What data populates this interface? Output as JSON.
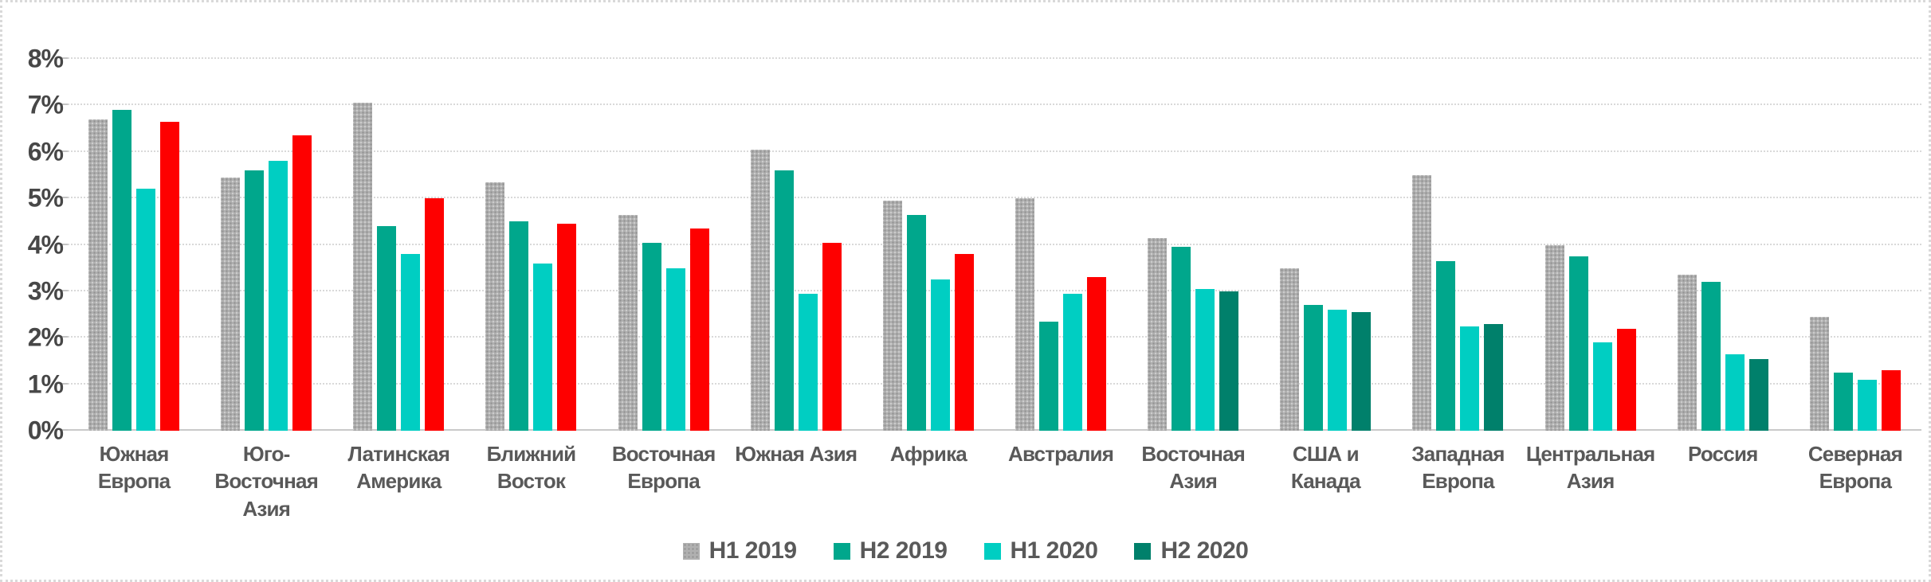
{
  "chart_data": {
    "type": "bar",
    "title": "",
    "xlabel": "",
    "ylabel": "",
    "ylim": [
      0,
      8
    ],
    "ytick_step": 1,
    "yticks": [
      "0%",
      "1%",
      "2%",
      "3%",
      "4%",
      "5%",
      "6%",
      "7%",
      "8%"
    ],
    "grid": true,
    "legend_position": "bottom",
    "categories": [
      "Южная Европа",
      "Юго-Восточная Азия",
      "Латинская Америка",
      "Ближний Восток",
      "Восточная Европа",
      "Южная Азия",
      "Африка",
      "Австралия",
      "Восточная Азия",
      "США и Канада",
      "Западная Европа",
      "Центральная Азия",
      "Россия",
      "Северная Европа"
    ],
    "series": [
      {
        "name": "H1 2019",
        "color": "#B0B0B0",
        "pattern": "dotted",
        "values": [
          6.7,
          5.45,
          7.05,
          5.35,
          4.65,
          6.05,
          4.95,
          5.0,
          4.15,
          3.5,
          5.5,
          4.0,
          3.35,
          2.45
        ]
      },
      {
        "name": "H2 2019",
        "color": "#00A78C",
        "values": [
          6.9,
          5.6,
          4.4,
          4.5,
          4.05,
          5.6,
          4.65,
          2.35,
          3.95,
          2.7,
          3.65,
          3.75,
          3.2,
          1.25
        ]
      },
      {
        "name": "H1 2020",
        "color": "#00CEC2",
        "values": [
          5.2,
          5.8,
          3.8,
          3.6,
          3.5,
          2.95,
          3.25,
          2.95,
          3.05,
          2.6,
          2.25,
          1.9,
          1.65,
          1.1
        ]
      },
      {
        "name": "H2 2020",
        "color": "#00806B",
        "highlight_color": "#FE0000",
        "values": [
          6.65,
          6.35,
          5.0,
          4.45,
          4.35,
          4.05,
          3.8,
          3.3,
          3.0,
          2.55,
          2.3,
          2.2,
          1.55,
          1.3
        ],
        "highlighted_categories": [
          true,
          true,
          true,
          true,
          true,
          true,
          true,
          true,
          false,
          false,
          false,
          true,
          false,
          true
        ]
      }
    ],
    "legend": [
      "H1 2019",
      "H2 2019",
      "H1 2020",
      "H2 2020"
    ],
    "colors": {
      "gridline": "#D9D9D9",
      "axis_text": "#595959",
      "highlight": "#FE0000"
    }
  }
}
